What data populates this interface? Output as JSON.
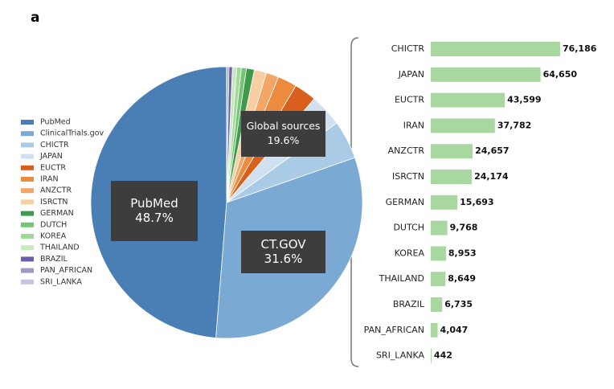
{
  "panel_label": "a",
  "chart_data": [
    {
      "type": "pie",
      "categories": [
        "PubMed",
        "ClinicalTrials.gov",
        "CHICTR",
        "JAPAN",
        "EUCTR",
        "IRAN",
        "ANZCTR",
        "ISRCTN",
        "GERMAN",
        "DUTCH",
        "KOREA",
        "THAILAND",
        "BRAZIL",
        "PAN_AFRICAN",
        "SRI_LANKA"
      ],
      "values": [
        48.7,
        31.6,
        4.59,
        3.89,
        2.63,
        2.28,
        1.49,
        1.46,
        0.95,
        0.59,
        0.54,
        0.52,
        0.41,
        0.24,
        0.03
      ],
      "colors": [
        "#4a7fb5",
        "#7aa9d4",
        "#a9cbe6",
        "#cfe0f1",
        "#d95f1c",
        "#ec8a3e",
        "#f2a766",
        "#f8cfa3",
        "#3f9a4d",
        "#74c476",
        "#a1d99b",
        "#c7e9c0",
        "#6a5fa8",
        "#9e9ac8",
        "#c5c3df"
      ],
      "annotations": [
        {
          "text": "PubMed",
          "label": "48.7%"
        },
        {
          "text": "CT.GOV",
          "label": "31.6%"
        },
        {
          "text": "Global sources",
          "label": "19.6%"
        }
      ]
    },
    {
      "type": "bar",
      "orientation": "horizontal",
      "categories": [
        "CHICTR",
        "JAPAN",
        "EUCTR",
        "IRAN",
        "ANZCTR",
        "ISRCTN",
        "GERMAN",
        "DUTCH",
        "KOREA",
        "THAILAND",
        "BRAZIL",
        "PAN_AFRICAN",
        "SRI_LANKA"
      ],
      "values": [
        76186,
        64650,
        43599,
        37782,
        24657,
        24174,
        15693,
        9768,
        8953,
        8649,
        6735,
        4047,
        442
      ],
      "value_labels": [
        "76,186",
        "64,650",
        "43,599",
        "37,782",
        "24,657",
        "24,174",
        "15,693",
        "9,768",
        "8,953",
        "8,649",
        "6,735",
        "4,047",
        "442"
      ],
      "color": "#a8d8a0",
      "xlim": [
        0,
        80000
      ]
    }
  ]
}
